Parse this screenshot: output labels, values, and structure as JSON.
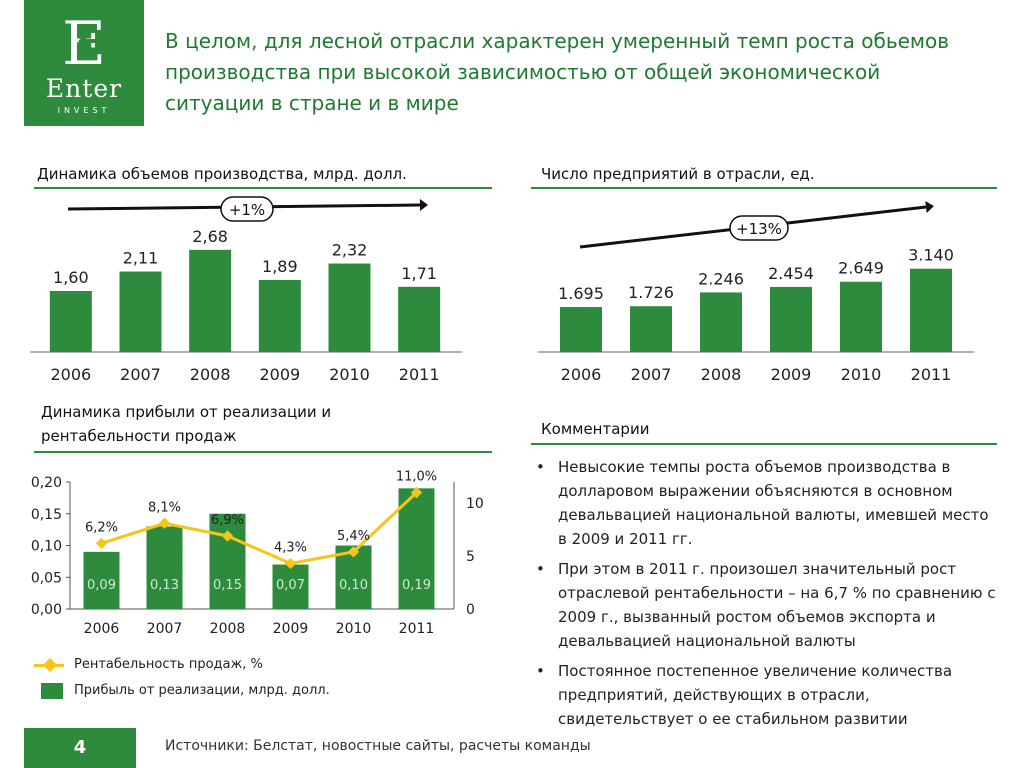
{
  "logo": {
    "letter": "E",
    "name": "Enter",
    "sub": "INVEST"
  },
  "headline": "В целом, для лесной отрасли характерен умеренный темп роста обьемов производства при высокой зависимостью от общей экономической ситуации в стране и в мире",
  "colors": {
    "accent": "#2e8b3e",
    "line": "#f5c518"
  },
  "sections": {
    "production": "Динамика объемов производства, млрд. долл.",
    "enterprises": "Число предприятий в отрасли, ед.",
    "profit": "Динамика прибыли от реализации и рентабельности продаж",
    "comments": "Комментарии"
  },
  "legend": {
    "line": "Рентабельность продаж, %",
    "bar": "Прибыль от реализации, млрд. долл."
  },
  "comments": [
    "Невысокие темпы роста объемов производства в долларовом выражении объясняются в основном девальвацией национальной валюты, имевшей место в 2009 и 2011 гг.",
    "При этом в 2011 г. произошел значительный рост отраслевой рентабельности – на 6,7 % по сравнению с 2009 г., вызванный ростом объемов экспорта и девальвацией национальной валюты",
    "Постоянное постепенное увеличение количества предприятий, действующих в отрасли, свидетельствует о ее стабильном развитии"
  ],
  "footer": {
    "page": "4",
    "sources": "Источники: Белстат, новостные сайты, расчеты команды"
  },
  "chart_data": [
    {
      "type": "bar",
      "categories": [
        "2006",
        "2007",
        "2008",
        "2009",
        "2010",
        "2011"
      ],
      "values": [
        1.6,
        2.11,
        2.68,
        1.89,
        2.32,
        1.71
      ],
      "labels": [
        "1,60",
        "2,11",
        "2,68",
        "1,89",
        "2,32",
        "1,71"
      ],
      "annotation": "+1%",
      "ylim": [
        0,
        3.2
      ]
    },
    {
      "type": "bar",
      "categories": [
        "2006",
        "2007",
        "2008",
        "2009",
        "2010",
        "2011"
      ],
      "values": [
        1695,
        1726,
        2246,
        2454,
        2649,
        3140
      ],
      "labels": [
        "1.695",
        "1.726",
        "2.246",
        "2.454",
        "2.649",
        "3.140"
      ],
      "annotation": "+13%",
      "ylim": [
        0,
        4600
      ]
    },
    {
      "type": "bar",
      "categories": [
        "2006",
        "2007",
        "2008",
        "2009",
        "2010",
        "2011"
      ],
      "series": [
        {
          "name": "Прибыль от реализации, млрд. долл.",
          "type": "bar",
          "axis": "left",
          "values": [
            0.09,
            0.13,
            0.15,
            0.07,
            0.1,
            0.19
          ],
          "labels": [
            "0,09",
            "0,13",
            "0,15",
            "0,07",
            "0,10",
            "0,19"
          ]
        },
        {
          "name": "Рентабельность продаж, %",
          "type": "line",
          "axis": "right",
          "values": [
            6.2,
            8.1,
            6.9,
            4.3,
            5.4,
            11.0
          ],
          "labels": [
            "6,2%",
            "8,1%",
            "6,9%",
            "4,3%",
            "5,4%",
            "11,0%"
          ]
        }
      ],
      "yticks": [
        "0,00",
        "0,05",
        "0,10",
        "0,15",
        "0,20"
      ],
      "y2ticks": [
        "0",
        "5",
        "10"
      ],
      "ylim": [
        0,
        0.2
      ],
      "y2lim": [
        0,
        12
      ]
    }
  ]
}
